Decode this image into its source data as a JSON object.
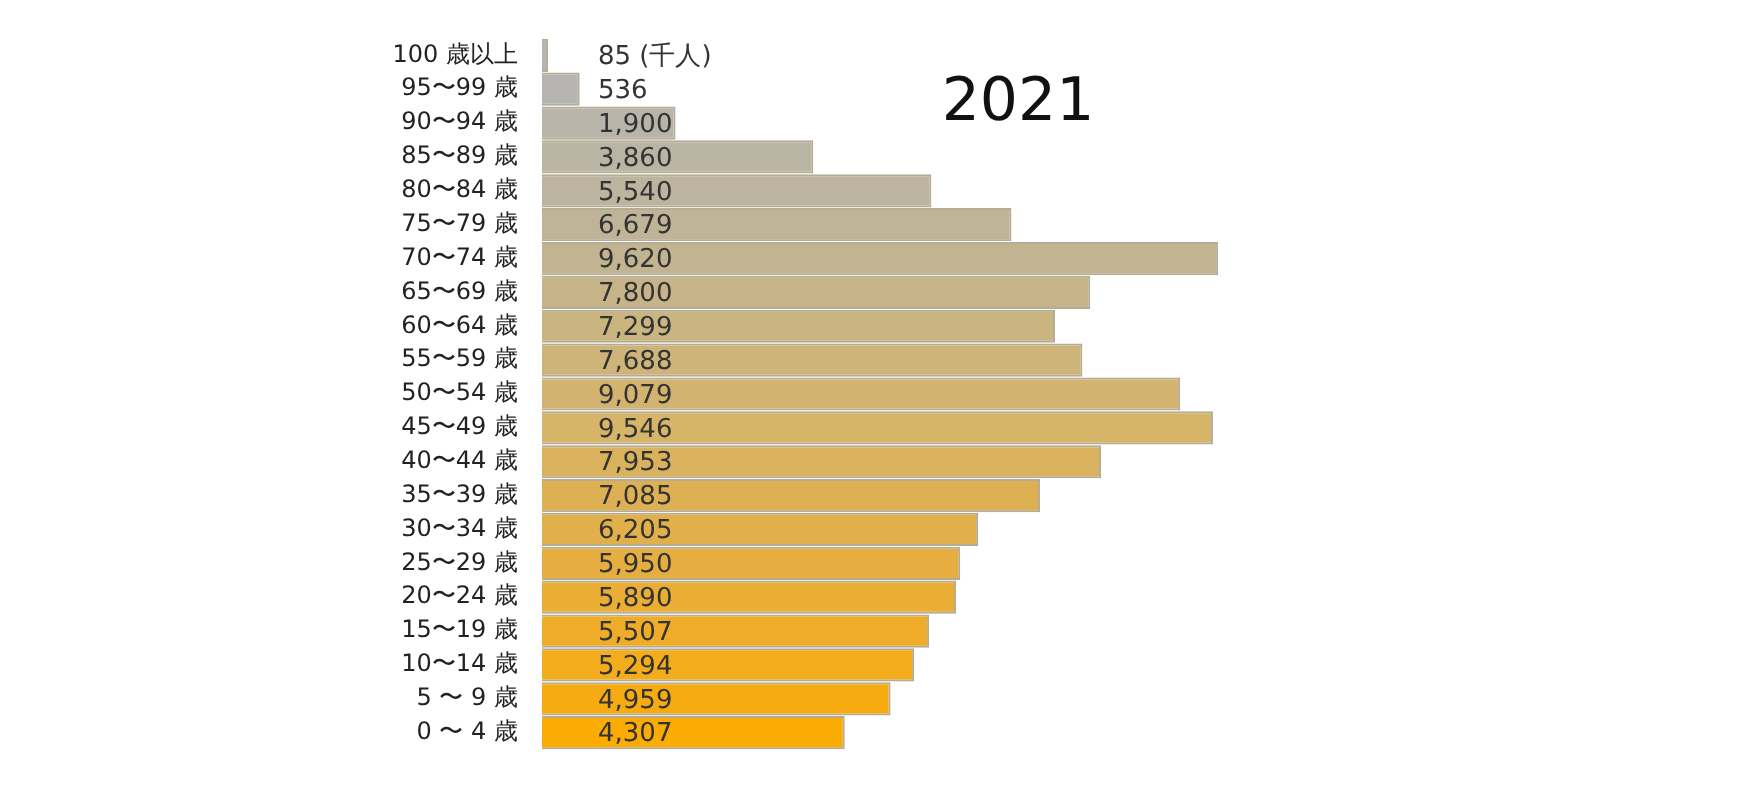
{
  "chart_data": {
    "type": "bar",
    "orientation": "horizontal",
    "title": "2021",
    "categories": [
      "100 歳以上",
      "95〜99 歳",
      "90〜94 歳",
      "85〜89 歳",
      "80〜84 歳",
      "75〜79 歳",
      "70〜74 歳",
      "65〜69 歳",
      "60〜64 歳",
      "55〜59 歳",
      "50〜54 歳",
      "45〜49 歳",
      "40〜44 歳",
      "35〜39 歳",
      "30〜34 歳",
      "25〜29 歳",
      "20〜24 歳",
      "15〜19 歳",
      "10〜14 歳",
      "5 〜 9 歳",
      "0 〜 4 歳"
    ],
    "values": [
      85,
      536,
      1900,
      3860,
      5540,
      6679,
      9620,
      7800,
      7299,
      7688,
      9079,
      9546,
      7953,
      7085,
      6205,
      5950,
      5890,
      5507,
      5294,
      4959,
      4307
    ],
    "value_labels": [
      "85 (千人)",
      "536",
      "1,900",
      "3,860",
      "5,540",
      "6,679",
      "9,620",
      "7,800",
      "7,299",
      "7,688",
      "9,079",
      "9,546",
      "7,953",
      "7,085",
      "6,205",
      "5,950",
      "5,890",
      "5,507",
      "5,294",
      "4,959",
      "4,307"
    ],
    "colors": [
      "#b4b4b4",
      "#b6b4b0",
      "#b8b4aa",
      "#bab4a4",
      "#bcb49e",
      "#bfb498",
      "#c2b490",
      "#c6b488",
      "#cab480",
      "#ceb478",
      "#d2b470",
      "#d6b468",
      "#dab25e",
      "#deb054",
      "#e2b04a",
      "#e6ae40",
      "#eaae34",
      "#eeac28",
      "#f2ac1c",
      "#f6ac10",
      "#fbac04"
    ]
  }
}
